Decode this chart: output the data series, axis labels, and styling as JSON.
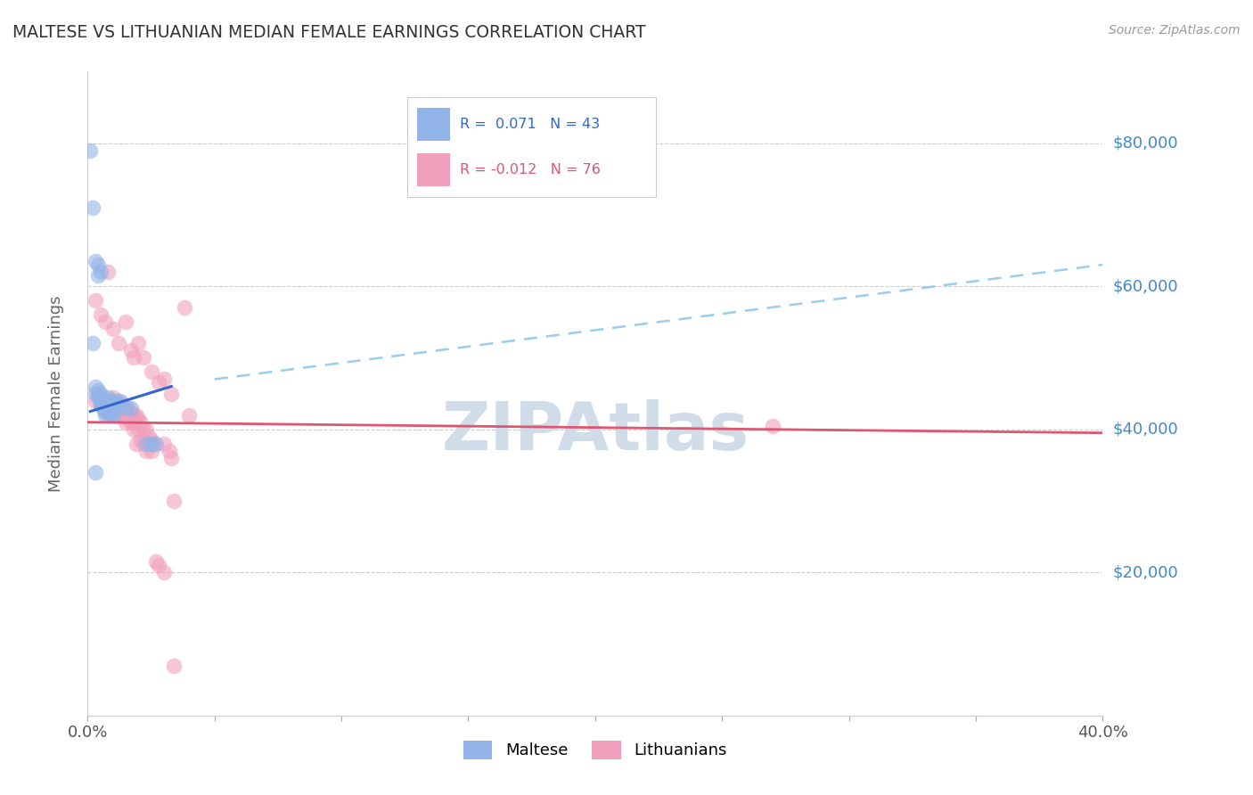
{
  "title": "MALTESE VS LITHUANIAN MEDIAN FEMALE EARNINGS CORRELATION CHART",
  "source": "Source: ZipAtlas.com",
  "ylabel": "Median Female Earnings",
  "x_min": 0.0,
  "x_max": 0.4,
  "y_min": 0,
  "y_max": 90000,
  "y_ticks": [
    20000,
    40000,
    60000,
    80000
  ],
  "y_tick_labels": [
    "$20,000",
    "$40,000",
    "$60,000",
    "$80,000"
  ],
  "maltese_color": "#92b4e8",
  "lithuanian_color": "#f0a0bc",
  "maltese_line_color": "#3366cc",
  "lithuanian_line_color": "#e05570",
  "dashed_line_color": "#99ccee",
  "watermark_color": "#d0dce8",
  "title_color": "#333333",
  "axis_label_color": "#666666",
  "right_tick_color": "#4488cc",
  "maltese_scatter": [
    [
      0.001,
      79000
    ],
    [
      0.002,
      71000
    ],
    [
      0.003,
      63500
    ],
    [
      0.004,
      63000
    ],
    [
      0.004,
      61500
    ],
    [
      0.005,
      62000
    ],
    [
      0.002,
      52000
    ],
    [
      0.003,
      46000
    ],
    [
      0.003,
      45000
    ],
    [
      0.004,
      45500
    ],
    [
      0.004,
      44500
    ],
    [
      0.005,
      45000
    ],
    [
      0.005,
      44000
    ],
    [
      0.005,
      43500
    ],
    [
      0.006,
      44000
    ],
    [
      0.006,
      43500
    ],
    [
      0.006,
      43000
    ],
    [
      0.007,
      44000
    ],
    [
      0.007,
      43000
    ],
    [
      0.007,
      42500
    ],
    [
      0.007,
      42000
    ],
    [
      0.008,
      44500
    ],
    [
      0.008,
      43500
    ],
    [
      0.008,
      43000
    ],
    [
      0.008,
      42500
    ],
    [
      0.009,
      44000
    ],
    [
      0.009,
      43000
    ],
    [
      0.009,
      42500
    ],
    [
      0.009,
      42000
    ],
    [
      0.01,
      44000
    ],
    [
      0.01,
      43000
    ],
    [
      0.01,
      42000
    ],
    [
      0.011,
      44000
    ],
    [
      0.011,
      43500
    ],
    [
      0.011,
      43000
    ],
    [
      0.012,
      43500
    ],
    [
      0.013,
      44000
    ],
    [
      0.015,
      43000
    ],
    [
      0.017,
      43000
    ],
    [
      0.023,
      38000
    ],
    [
      0.025,
      38000
    ],
    [
      0.027,
      38000
    ],
    [
      0.003,
      34000
    ]
  ],
  "lithuanian_scatter": [
    [
      0.003,
      58000
    ],
    [
      0.005,
      56000
    ],
    [
      0.007,
      55000
    ],
    [
      0.008,
      62000
    ],
    [
      0.01,
      54000
    ],
    [
      0.012,
      52000
    ],
    [
      0.015,
      55000
    ],
    [
      0.017,
      51000
    ],
    [
      0.018,
      50000
    ],
    [
      0.02,
      52000
    ],
    [
      0.022,
      50000
    ],
    [
      0.025,
      48000
    ],
    [
      0.028,
      46500
    ],
    [
      0.03,
      47000
    ],
    [
      0.033,
      45000
    ],
    [
      0.038,
      57000
    ],
    [
      0.04,
      42000
    ],
    [
      0.003,
      44000
    ],
    [
      0.004,
      45000
    ],
    [
      0.005,
      44500
    ],
    [
      0.005,
      43500
    ],
    [
      0.006,
      44000
    ],
    [
      0.006,
      43000
    ],
    [
      0.007,
      44000
    ],
    [
      0.007,
      43000
    ],
    [
      0.007,
      42500
    ],
    [
      0.008,
      44000
    ],
    [
      0.008,
      43500
    ],
    [
      0.008,
      43000
    ],
    [
      0.009,
      44000
    ],
    [
      0.009,
      43500
    ],
    [
      0.009,
      43000
    ],
    [
      0.009,
      42500
    ],
    [
      0.01,
      44500
    ],
    [
      0.01,
      44000
    ],
    [
      0.01,
      43000
    ],
    [
      0.01,
      42000
    ],
    [
      0.011,
      44000
    ],
    [
      0.011,
      43500
    ],
    [
      0.012,
      44000
    ],
    [
      0.012,
      43000
    ],
    [
      0.012,
      42500
    ],
    [
      0.013,
      43500
    ],
    [
      0.013,
      43000
    ],
    [
      0.013,
      42000
    ],
    [
      0.014,
      43500
    ],
    [
      0.014,
      43000
    ],
    [
      0.014,
      42000
    ],
    [
      0.015,
      43000
    ],
    [
      0.015,
      42000
    ],
    [
      0.015,
      41000
    ],
    [
      0.016,
      43000
    ],
    [
      0.016,
      42500
    ],
    [
      0.016,
      41500
    ],
    [
      0.017,
      42000
    ],
    [
      0.017,
      41000
    ],
    [
      0.018,
      42000
    ],
    [
      0.018,
      41000
    ],
    [
      0.018,
      40000
    ],
    [
      0.019,
      42000
    ],
    [
      0.019,
      41000
    ],
    [
      0.019,
      38000
    ],
    [
      0.02,
      41500
    ],
    [
      0.02,
      40000
    ],
    [
      0.021,
      41000
    ],
    [
      0.021,
      38500
    ],
    [
      0.022,
      40000
    ],
    [
      0.022,
      38000
    ],
    [
      0.023,
      40000
    ],
    [
      0.023,
      37000
    ],
    [
      0.024,
      39000
    ],
    [
      0.025,
      38500
    ],
    [
      0.025,
      37000
    ],
    [
      0.026,
      38000
    ],
    [
      0.027,
      21500
    ],
    [
      0.028,
      21000
    ],
    [
      0.03,
      38000
    ],
    [
      0.03,
      20000
    ],
    [
      0.032,
      37000
    ],
    [
      0.033,
      36000
    ],
    [
      0.034,
      30000
    ],
    [
      0.034,
      7000
    ],
    [
      0.27,
      40500
    ]
  ],
  "maltese_trend_x": [
    0.001,
    0.033
  ],
  "maltese_trend_y": [
    42500,
    46000
  ],
  "lithuanian_trend_x": [
    0.0,
    0.4
  ],
  "lithuanian_trend_y": [
    41000,
    39500
  ],
  "dashed_trend_x": [
    0.05,
    0.4
  ],
  "dashed_trend_y": [
    47000,
    63000
  ]
}
